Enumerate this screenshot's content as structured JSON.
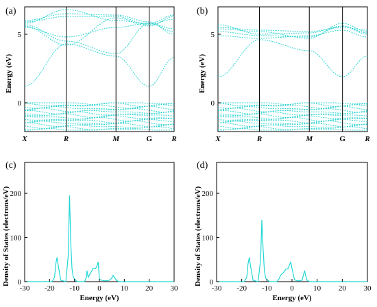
{
  "colors": {
    "curve": "#20d6d6",
    "axes": "#000000"
  },
  "chart_data": [
    {
      "id": "a",
      "type": "line",
      "panel_label": "(a)",
      "ylabel": "Energy (eV)",
      "yticks": [
        0,
        5
      ],
      "ylim": [
        -2.1,
        7
      ],
      "xlabels": [
        "X",
        "R",
        "M",
        "G",
        "R"
      ],
      "kpoints": [
        0,
        1,
        2.2,
        3,
        3.6
      ],
      "series": [
        {
          "x": [
            0,
            1,
            2.2,
            3,
            3.6
          ],
          "y": [
            1.2,
            4.3,
            3.4,
            1.2,
            3.3
          ]
        },
        {
          "x": [
            0,
            1,
            2.2,
            3,
            3.6
          ],
          "y": [
            5.6,
            4.2,
            6.2,
            5.6,
            6.3
          ]
        },
        {
          "x": [
            0,
            1,
            2.2,
            3,
            3.6
          ],
          "y": [
            5.8,
            6.8,
            6.0,
            5.8,
            6.4
          ]
        },
        {
          "x": [
            0,
            1,
            2.2,
            3,
            3.6
          ],
          "y": [
            5.9,
            6.3,
            6.3,
            5.7,
            6.1
          ]
        },
        {
          "x": [
            0,
            1,
            2.2,
            3,
            3.6
          ],
          "y": [
            5.5,
            4.8,
            5.5,
            5.8,
            5.2
          ]
        },
        {
          "x": [
            0,
            1,
            2.2,
            3,
            3.6
          ],
          "y": [
            6.0,
            6.5,
            6.4,
            5.9,
            5.0
          ]
        },
        {
          "x": [
            0,
            1,
            2.2,
            3,
            3.6
          ],
          "y": [
            5.7,
            4.5,
            3.6,
            5.8,
            5.4
          ]
        }
      ],
      "valence": {
        "top": 0,
        "bottom": -2.0,
        "lines": 16
      }
    },
    {
      "id": "b",
      "type": "line",
      "panel_label": "(b)",
      "ylabel": "Energy (eV)",
      "yticks": [
        0,
        5
      ],
      "ylim": [
        -2.1,
        7
      ],
      "xlabels": [
        "X",
        "R",
        "M",
        "G",
        "R"
      ],
      "kpoints": [
        0,
        1,
        2.2,
        3,
        3.6
      ],
      "series": [
        {
          "x": [
            0,
            1,
            2.2,
            3,
            3.6
          ],
          "y": [
            1.9,
            4.6,
            3.8,
            1.9,
            3.4
          ]
        },
        {
          "x": [
            0,
            1,
            2.2,
            3,
            3.6
          ],
          "y": [
            5.7,
            5.0,
            5.1,
            5.6,
            5.0
          ]
        },
        {
          "x": [
            0,
            1,
            2.2,
            3,
            3.6
          ],
          "y": [
            5.5,
            5.3,
            5.2,
            5.5,
            5.3
          ]
        },
        {
          "x": [
            0,
            1,
            2.2,
            3,
            3.6
          ],
          "y": [
            5.2,
            4.9,
            4.8,
            5.6,
            5.1
          ]
        },
        {
          "x": [
            0,
            1,
            2.2,
            3,
            3.6
          ],
          "y": [
            4.9,
            4.7,
            4.9,
            5.3,
            4.8
          ]
        },
        {
          "x": [
            0,
            1,
            2.2,
            3,
            3.6
          ],
          "y": [
            5.4,
            5.2,
            4.7,
            5.8,
            5.2
          ]
        }
      ],
      "valence": {
        "top": 0,
        "bottom": -2.0,
        "lines": 16
      }
    },
    {
      "id": "c",
      "type": "line",
      "panel_label": "(c)",
      "xlabel": "Energy (eV)",
      "ylabel": "Density of States (electrons/eV)",
      "xlim": [
        -30,
        30
      ],
      "ylim": [
        0,
        270
      ],
      "xticks": [
        -30,
        -20,
        -10,
        0,
        10,
        20,
        30
      ],
      "yticks": [
        0,
        100,
        200
      ],
      "x": [
        -30,
        -19,
        -18,
        -17.5,
        -17,
        -16.5,
        -15.5,
        -13.5,
        -12.5,
        -12,
        -11.5,
        -11,
        -10.5,
        -9,
        -6,
        -5.2,
        -5,
        -4.5,
        -3.5,
        -2.5,
        -1.5,
        -0.8,
        -0.5,
        0,
        1,
        2,
        3,
        4,
        5,
        5.5,
        6,
        7,
        8,
        30
      ],
      "y": [
        0,
        0,
        10,
        40,
        55,
        35,
        3,
        0,
        60,
        195,
        90,
        30,
        10,
        0,
        0,
        10,
        25,
        10,
        20,
        30,
        30,
        38,
        45,
        5,
        3,
        2,
        2,
        3,
        8,
        14,
        10,
        2,
        0,
        0
      ]
    },
    {
      "id": "d",
      "type": "line",
      "panel_label": "(d)",
      "xlabel": "Energy (eV)",
      "ylabel": "Density of States (electrons/eV)",
      "xlim": [
        -30,
        30
      ],
      "ylim": [
        0,
        270
      ],
      "xticks": [
        -30,
        -20,
        -10,
        0,
        10,
        20,
        30
      ],
      "yticks": [
        0,
        100,
        200
      ],
      "x": [
        -30,
        -19,
        -18,
        -17.5,
        -17,
        -16.5,
        -15.5,
        -13.5,
        -12.5,
        -12,
        -11.5,
        -11,
        -10.5,
        -9,
        -6,
        -5,
        -4.5,
        -3.5,
        -2.5,
        -1.5,
        -1,
        -0.5,
        0,
        1,
        2,
        3,
        4,
        4.5,
        5,
        5.5,
        6,
        7,
        30
      ],
      "y": [
        0,
        0,
        10,
        40,
        55,
        35,
        3,
        0,
        50,
        140,
        75,
        25,
        8,
        0,
        0,
        8,
        15,
        20,
        28,
        30,
        38,
        44,
        30,
        4,
        2,
        2,
        3,
        14,
        25,
        12,
        3,
        0,
        0
      ]
    }
  ]
}
